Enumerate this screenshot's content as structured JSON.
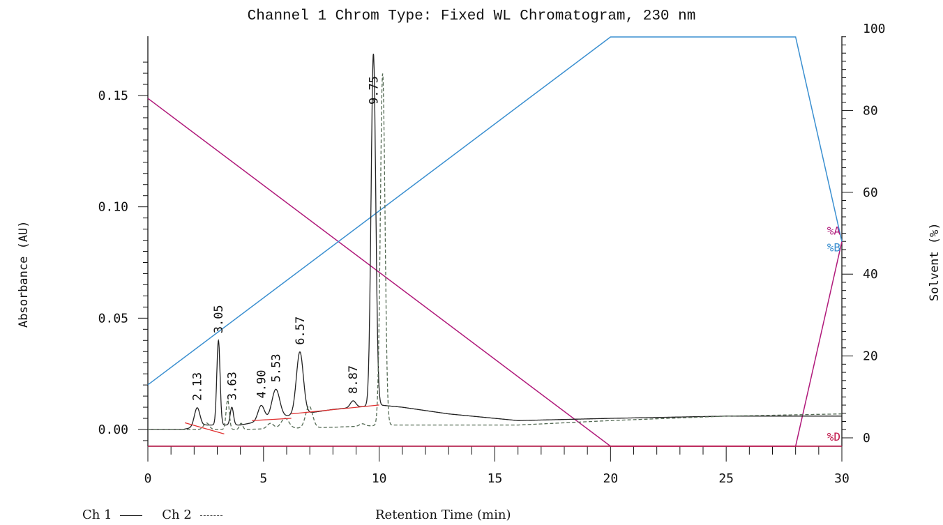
{
  "chart_data": {
    "type": "line",
    "title": "Channel 1 Chrom Type: Fixed WL Chromatogram, 230 nm",
    "xlabel": "Retention Time (min)",
    "ylabel_left": "Absorbance (AU)",
    "ylabel_right": "Solvent (%)",
    "xlim": [
      0,
      30
    ],
    "ylim_left": [
      -0.008,
      0.17
    ],
    "ylim_right": [
      0,
      100
    ],
    "x_ticks": [
      0,
      5,
      10,
      15,
      20,
      25,
      30
    ],
    "x_tick_labels": [
      "0",
      "5",
      "10",
      "15",
      "20",
      "25",
      "30"
    ],
    "y_left_ticks": [
      0.0,
      0.05,
      0.1,
      0.15
    ],
    "y_left_tick_labels": [
      "0.00",
      "0.05",
      "0.10",
      "0.15"
    ],
    "y_right_ticks": [
      0,
      20,
      40,
      60,
      80,
      100
    ],
    "y_right_tick_labels": [
      "0",
      "20",
      "40",
      "60",
      "80",
      "100"
    ],
    "peaks": [
      {
        "rt": 2.13,
        "label": "2.13",
        "height": 0.0085,
        "width": 0.12
      },
      {
        "rt": 3.05,
        "label": "3.05",
        "height": 0.038,
        "width": 0.07
      },
      {
        "rt": 3.63,
        "label": "3.63",
        "height": 0.008,
        "width": 0.07
      },
      {
        "rt": 4.9,
        "label": "4.90",
        "height": 0.007,
        "width": 0.14
      },
      {
        "rt": 5.53,
        "label": "5.53",
        "height": 0.013,
        "width": 0.17
      },
      {
        "rt": 6.57,
        "label": "6.57",
        "height": 0.028,
        "width": 0.15
      },
      {
        "rt": 8.87,
        "label": "8.87",
        "height": 0.003,
        "width": 0.12
      },
      {
        "rt": 9.75,
        "label": "9.75",
        "height": 0.158,
        "width": 0.1
      }
    ],
    "series": [
      {
        "name": "Ch 1",
        "style": "solid",
        "color": "#222222",
        "baseline": [
          [
            0,
            0.0
          ],
          [
            1.5,
            0.0
          ],
          [
            2.5,
            0.002
          ],
          [
            4,
            0.002
          ],
          [
            6,
            0.006
          ],
          [
            8,
            0.009
          ],
          [
            10,
            0.011
          ],
          [
            11,
            0.01
          ],
          [
            13,
            0.007
          ],
          [
            16,
            0.004
          ],
          [
            20,
            0.005
          ],
          [
            25,
            0.006
          ],
          [
            30,
            0.006
          ]
        ]
      },
      {
        "name": "Ch 2",
        "style": "dashed",
        "color": "#556b55",
        "baseline": [
          [
            0,
            0.0
          ],
          [
            4,
            0.0
          ],
          [
            8,
            0.001
          ],
          [
            10.5,
            0.002
          ],
          [
            12,
            0.002
          ],
          [
            16,
            0.002
          ],
          [
            20,
            0.004
          ],
          [
            25,
            0.006
          ],
          [
            30,
            0.007
          ]
        ]
      }
    ],
    "integration_baselines": [
      [
        [
          1.6,
          0.003
        ],
        [
          3.3,
          -0.002
        ]
      ],
      [
        [
          4.5,
          0.004
        ],
        [
          6.2,
          0.005
        ]
      ],
      [
        [
          6.2,
          0.007
        ],
        [
          10.0,
          0.011
        ]
      ]
    ],
    "solvent_gradient": [
      {
        "name": "%A",
        "label": "%A",
        "color": "#b0197a",
        "points": [
          [
            0,
            85
          ],
          [
            20,
            0
          ],
          [
            28,
            0
          ],
          [
            30,
            50
          ]
        ]
      },
      {
        "name": "%B",
        "label": "%B",
        "color": "#3a8fd0",
        "points": [
          [
            0,
            15
          ],
          [
            20,
            100
          ],
          [
            28,
            100
          ],
          [
            30,
            50
          ]
        ]
      },
      {
        "name": "%D",
        "label": "%D",
        "color": "#c0174a",
        "points": [
          [
            0,
            0
          ],
          [
            30,
            0
          ]
        ]
      }
    ],
    "legend": [
      {
        "name": "Ch 1",
        "style": "solid"
      },
      {
        "name": "Ch 2",
        "style": "dashed"
      }
    ],
    "legend_position": "bottom-left",
    "grid": false
  }
}
